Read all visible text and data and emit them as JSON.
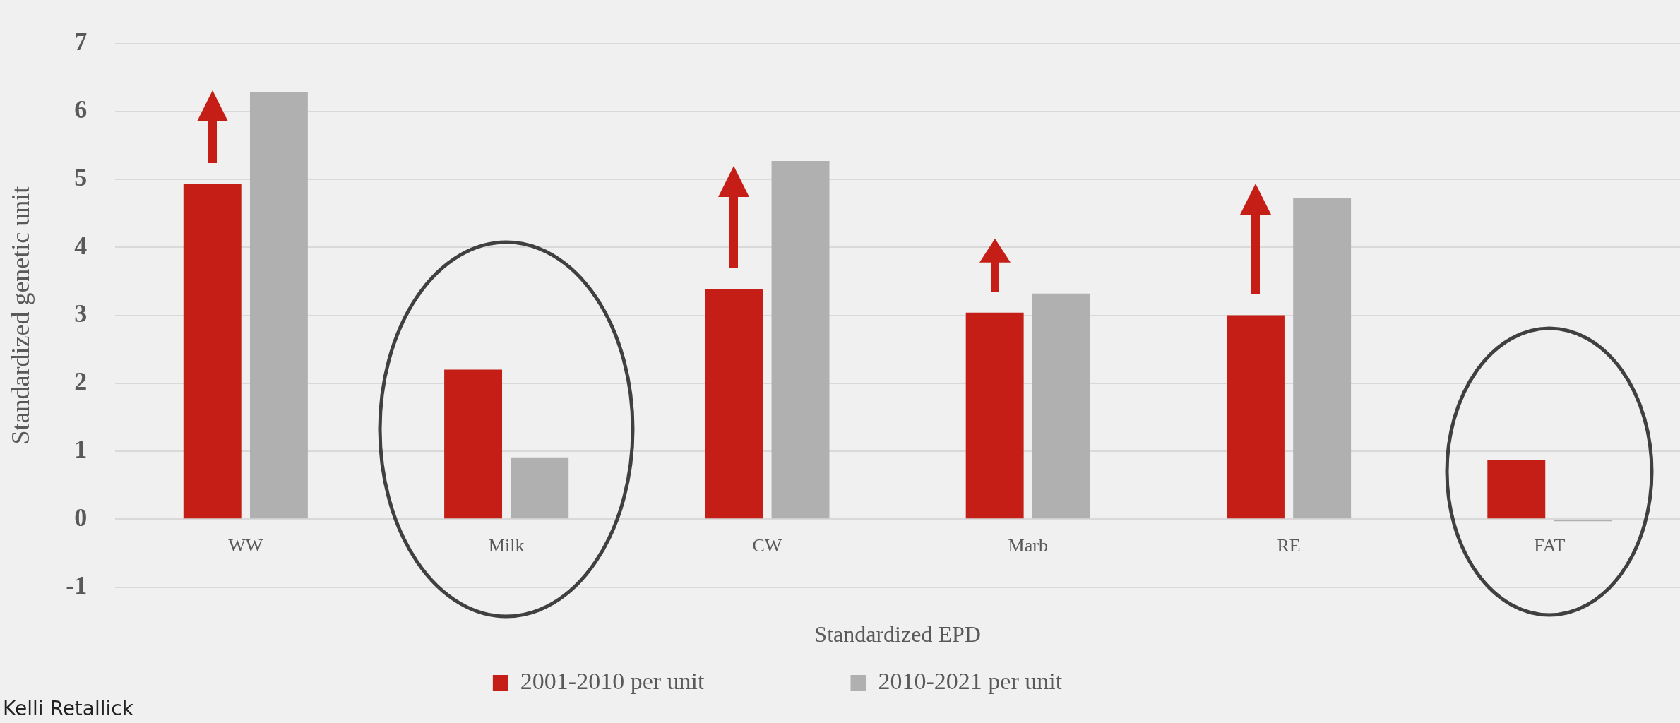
{
  "chart_data": {
    "type": "bar",
    "xlabel": "Standardized EPD",
    "ylabel": "Standardized genetic unit",
    "categories": [
      "WW",
      "Milk",
      "CW",
      "Marb",
      "RE",
      "FAT"
    ],
    "series": [
      {
        "name": "2001-2010 per unit",
        "color": "#c41e16",
        "values": [
          4.93,
          2.2,
          3.38,
          3.04,
          3.0,
          0.87
        ]
      },
      {
        "name": "2010-2021 per unit",
        "color": "#b0b0b0",
        "values": [
          6.29,
          0.91,
          5.27,
          3.32,
          4.72,
          -0.03
        ]
      }
    ],
    "ylim": [
      -1,
      7
    ],
    "yticks": [
      -1,
      0,
      1,
      2,
      3,
      4,
      5,
      6,
      7
    ],
    "grid": "y",
    "legend": "bottom",
    "annotations": [
      "Kelli Retallick"
    ]
  }
}
